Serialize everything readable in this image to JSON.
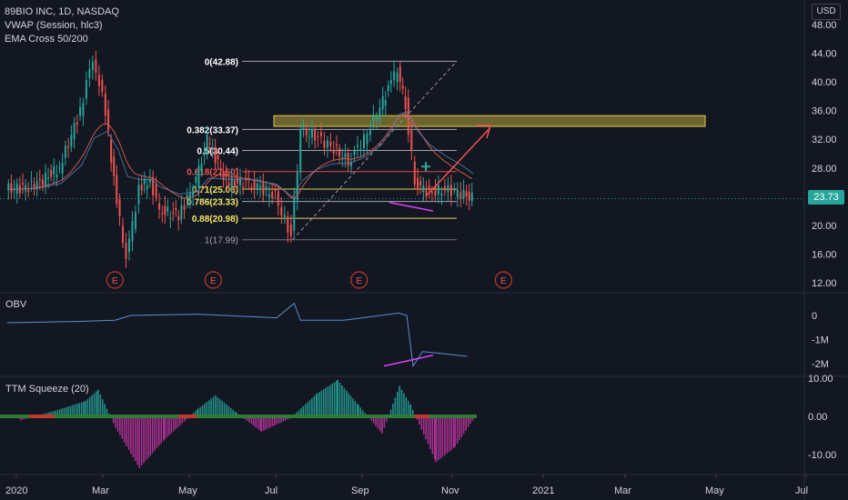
{
  "legend": {
    "symbol": "89BIO INC, 1D, NASDAQ",
    "vwap": "VWAP (Session, hlc3)",
    "ema": "EMA Cross 50/200"
  },
  "currency": "USD",
  "last_price": "23.73",
  "chart_data": [
    {
      "type": "line",
      "title": "89BIO INC, 1D, NASDAQ",
      "x_ticks": [
        "2020",
        "Mar",
        "May",
        "Jul",
        "Sep",
        "Nov",
        "2021",
        "Mar",
        "May",
        "Jul"
      ],
      "y_ticks": [
        "48.00",
        "44.00",
        "40.00",
        "36.00",
        "32.00",
        "28.00",
        "24.00",
        "20.00",
        "16.00",
        "12.00"
      ],
      "ylim": [
        12,
        48
      ],
      "price_series": [
        {
          "date": "2020-01-02",
          "close": 25.0
        },
        {
          "date": "2020-01-20",
          "close": 25.5
        },
        {
          "date": "2020-02-05",
          "close": 28.0
        },
        {
          "date": "2020-02-18",
          "close": 36.0
        },
        {
          "date": "2020-02-26",
          "close": 43.5
        },
        {
          "date": "2020-03-05",
          "close": 36.0
        },
        {
          "date": "2020-03-12",
          "close": 23.0
        },
        {
          "date": "2020-03-18",
          "close": 15.5
        },
        {
          "date": "2020-03-26",
          "close": 25.0
        },
        {
          "date": "2020-04-02",
          "close": 26.5
        },
        {
          "date": "2020-04-08",
          "close": 22.0
        },
        {
          "date": "2020-04-20",
          "close": 21.5
        },
        {
          "date": "2020-05-01",
          "close": 26.0
        },
        {
          "date": "2020-05-08",
          "close": 32.0
        },
        {
          "date": "2020-05-20",
          "close": 26.0
        },
        {
          "date": "2020-06-05",
          "close": 26.0
        },
        {
          "date": "2020-06-20",
          "close": 24.0
        },
        {
          "date": "2020-06-30",
          "close": 18.5
        },
        {
          "date": "2020-07-06",
          "close": 33.0
        },
        {
          "date": "2020-07-15",
          "close": 32.5
        },
        {
          "date": "2020-07-25",
          "close": 31.0
        },
        {
          "date": "2020-08-05",
          "close": 29.0
        },
        {
          "date": "2020-08-15",
          "close": 32.0
        },
        {
          "date": "2020-08-25",
          "close": 36.5
        },
        {
          "date": "2020-09-01",
          "close": 40.0
        },
        {
          "date": "2020-09-05",
          "close": 41.5
        },
        {
          "date": "2020-09-10",
          "close": 37.0
        },
        {
          "date": "2020-09-16",
          "close": 26.0
        },
        {
          "date": "2020-09-25",
          "close": 24.5
        },
        {
          "date": "2020-10-05",
          "close": 25.0
        },
        {
          "date": "2020-10-15",
          "close": 24.5
        },
        {
          "date": "2020-10-22",
          "close": 23.73
        }
      ],
      "fib_levels": [
        {
          "ratio": "0",
          "price": 42.88,
          "label": "0(42.88)"
        },
        {
          "ratio": "0.382",
          "price": 33.37,
          "label": "0.382(33.37)"
        },
        {
          "ratio": "0.5",
          "price": 30.44,
          "label": "0.5(30.44)"
        },
        {
          "ratio": "0.618",
          "price": 27.5,
          "label": "0.618(27.50)"
        },
        {
          "ratio": "0.71",
          "price": 25.06,
          "label": "0.71(25.06)"
        },
        {
          "ratio": "0.786",
          "price": 23.33,
          "label": "0.786(23.33)"
        },
        {
          "ratio": "0.88",
          "price": 20.98,
          "label": "0.88(20.98)"
        },
        {
          "ratio": "1",
          "price": 17.99,
          "label": "1(17.99)"
        }
      ],
      "earnings_markers": [
        "E",
        "E",
        "E",
        "E"
      ],
      "earnings_dates": [
        "2020-03-10",
        "2020-05-11",
        "2020-08-11",
        "2020-11-10"
      ],
      "resistance_zone": [
        33.8,
        35.3
      ],
      "last_price": 23.73
    },
    {
      "type": "line",
      "title": "OBV",
      "y_ticks": [
        "0",
        "-1M",
        "-2M"
      ],
      "ylim": [
        -2.3,
        0.6
      ],
      "values": [
        {
          "date": "2020-01-02",
          "value": -0.3
        },
        {
          "date": "2020-02-15",
          "value": -0.25
        },
        {
          "date": "2020-03-10",
          "value": -0.2
        },
        {
          "date": "2020-03-20",
          "value": 0.0
        },
        {
          "date": "2020-05-01",
          "value": 0.05
        },
        {
          "date": "2020-06-20",
          "value": -0.1
        },
        {
          "date": "2020-07-01",
          "value": 0.5
        },
        {
          "date": "2020-07-05",
          "value": -0.2
        },
        {
          "date": "2020-08-01",
          "value": -0.2
        },
        {
          "date": "2020-09-05",
          "value": 0.1
        },
        {
          "date": "2020-09-10",
          "value": 0.0
        },
        {
          "date": "2020-09-14",
          "value": -2.1
        },
        {
          "date": "2020-09-20",
          "value": -1.5
        },
        {
          "date": "2020-10-05",
          "value": -1.6
        },
        {
          "date": "2020-10-18",
          "value": -1.7
        }
      ]
    },
    {
      "type": "bar",
      "title": "TTM Squeeze (20)",
      "y_ticks": [
        "10.00",
        "0.00",
        "-10.00"
      ],
      "ylim": [
        -14,
        12
      ],
      "values": [
        {
          "date": "2020-01-10",
          "value": -1.0
        },
        {
          "date": "2020-02-01",
          "value": 1.5
        },
        {
          "date": "2020-02-20",
          "value": 4.0
        },
        {
          "date": "2020-02-28",
          "value": 7.0
        },
        {
          "date": "2020-03-10",
          "value": -3.0
        },
        {
          "date": "2020-03-25",
          "value": -13.5
        },
        {
          "date": "2020-04-10",
          "value": -6.0
        },
        {
          "date": "2020-05-01",
          "value": 2.0
        },
        {
          "date": "2020-05-12",
          "value": 5.5
        },
        {
          "date": "2020-05-25",
          "value": 1.0
        },
        {
          "date": "2020-06-10",
          "value": -4.0
        },
        {
          "date": "2020-06-28",
          "value": -0.5
        },
        {
          "date": "2020-07-15",
          "value": 6.0
        },
        {
          "date": "2020-07-28",
          "value": 9.5
        },
        {
          "date": "2020-08-10",
          "value": 3.0
        },
        {
          "date": "2020-08-25",
          "value": -4.5
        },
        {
          "date": "2020-09-05",
          "value": 8.0
        },
        {
          "date": "2020-09-12",
          "value": 3.0
        },
        {
          "date": "2020-09-28",
          "value": -12.0
        },
        {
          "date": "2020-10-10",
          "value": -8.0
        },
        {
          "date": "2020-10-22",
          "value": -0.5
        }
      ]
    }
  ],
  "colors": {
    "background": "#131722",
    "up": "#26a69a",
    "down": "#ef5350",
    "ema_fast": "#c85a4b",
    "vwap": "#5b7fb0",
    "fib_label": "#f5e663",
    "zone_fill": "#b8a53a",
    "squeeze_pos": "#26a69a",
    "squeeze_neg": "#c535a5",
    "squeeze_dot": "#2e7d32",
    "divergence": "#e040fb",
    "arrow": "#f05050"
  }
}
